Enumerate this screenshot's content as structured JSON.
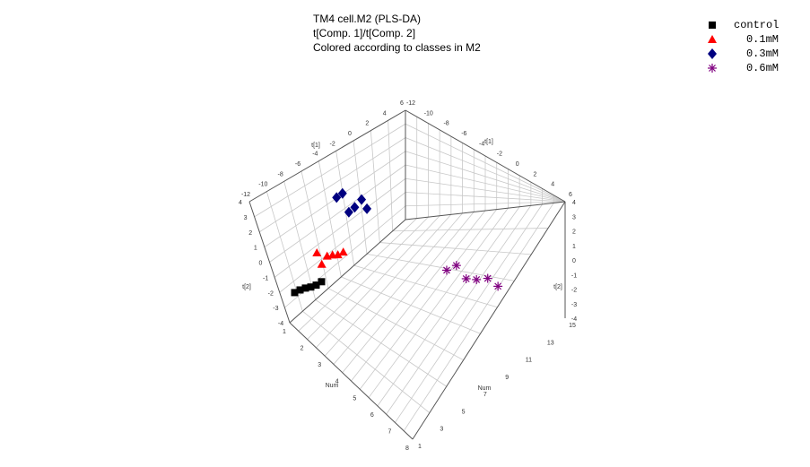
{
  "chart_data": {
    "type": "scatter",
    "projection": "3d",
    "title_lines": [
      "TM4 cell.M2 (PLS-DA)",
      "t[Comp. 1]/t[Comp. 2]",
      "Colored according to classes in M2"
    ],
    "legend_placement": "top-right",
    "grid": true,
    "axes": {
      "x": {
        "label": "Num",
        "range": [
          1,
          15
        ]
      },
      "y": {
        "label": "t[1]",
        "range": [
          -12,
          6
        ]
      },
      "z": {
        "label": "t[2]",
        "range": [
          -4,
          4
        ]
      }
    },
    "series": [
      {
        "name": "control",
        "marker": "square",
        "color": "#000000",
        "points": [
          [
            1,
            -11.0,
            -1.0
          ],
          [
            1.5,
            -10.8,
            -0.3
          ],
          [
            2,
            -10.6,
            0.3
          ],
          [
            2.5,
            -10.4,
            0.8
          ],
          [
            3,
            -10.2,
            1.4
          ],
          [
            3.5,
            -10.0,
            2.2
          ]
        ]
      },
      {
        "name": "0.1mM",
        "marker": "triangle",
        "color": "#ff0000",
        "points": [
          [
            1,
            -6.5,
            0.3
          ],
          [
            1.5,
            -6.4,
            -0.7
          ],
          [
            2,
            -6.2,
            0.7
          ],
          [
            2.5,
            -6.0,
            1.2
          ],
          [
            3,
            -5.8,
            1.6
          ],
          [
            3.5,
            -5.6,
            2.3
          ]
        ]
      },
      {
        "name": "0.3mM",
        "marker": "diamond",
        "color": "#000080",
        "points": [
          [
            1,
            -2.5,
            4.0
          ],
          [
            1.5,
            -2.2,
            4.8
          ],
          [
            2,
            -1.8,
            2.6
          ],
          [
            2.5,
            -1.5,
            3.5
          ],
          [
            3,
            -1.0,
            4.6
          ],
          [
            3.5,
            -0.8,
            3.8
          ]
        ]
      },
      {
        "name": "0.6mM",
        "marker": "star",
        "color": "#800080",
        "points": [
          [
            10,
            3.8,
            -1.0
          ],
          [
            11,
            4.0,
            0.5
          ],
          [
            12,
            4.2,
            -0.3
          ],
          [
            13,
            4.5,
            0.4
          ],
          [
            14,
            5.0,
            1.2
          ],
          [
            15,
            5.3,
            1.0
          ]
        ]
      }
    ]
  }
}
